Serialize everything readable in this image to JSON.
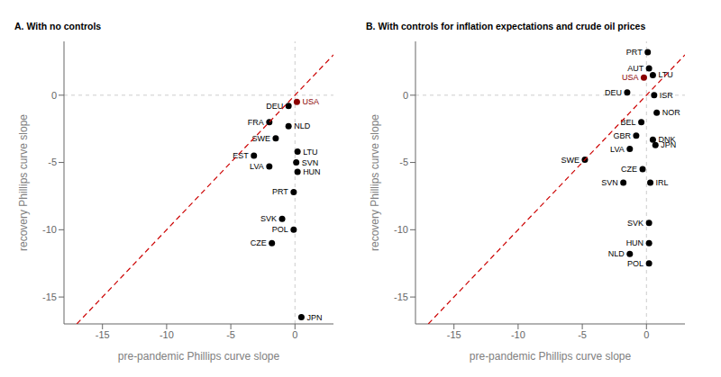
{
  "chart_data": [
    {
      "type": "scatter",
      "title": "A. With no controls",
      "xlabel": "pre-pandemic Phillips curve slope",
      "ylabel": "recovery Phillips curve slope",
      "xlim": [
        -18,
        3
      ],
      "ylim": [
        -17,
        4
      ],
      "xticks": [
        -15,
        -10,
        -5,
        0
      ],
      "yticks": [
        -15,
        -10,
        -5,
        0
      ],
      "series": [
        {
          "type": "scatter",
          "x": [
            0.15,
            -0.5,
            -2.0,
            -0.5,
            -1.5,
            -3.2,
            0.2,
            0.1,
            0.2,
            -2.0,
            -0.1,
            -1.0,
            -0.1,
            -1.8,
            0.5
          ],
          "values": [
            -0.5,
            -0.8,
            -2.0,
            -2.3,
            -3.2,
            -4.5,
            -4.2,
            -5.0,
            -5.7,
            -5.3,
            -7.2,
            -9.2,
            -10.0,
            -11.0,
            -16.5
          ],
          "colors": [
            "#8B0000",
            "#000000",
            "#000000",
            "#000000",
            "#000000",
            "#000000",
            "#000000",
            "#000000",
            "#000000",
            "#000000",
            "#000000",
            "#000000",
            "#000000",
            "#000000",
            "#000000"
          ],
          "annotations": [
            "USA",
            "DEU",
            "FRA",
            "NLD",
            "SWE",
            "EST",
            "LTU",
            "SVN",
            "HUN",
            "LVA",
            "PRT",
            "SVK",
            "POL",
            "CZE",
            "JPN"
          ]
        },
        {
          "type": "line",
          "line_style": "dashed",
          "color": "#cc0000",
          "x": [
            -17,
            3
          ],
          "values": [
            -17,
            3
          ]
        }
      ]
    },
    {
      "type": "scatter",
      "title": "B. With controls for inflation expectations and crude oil prices",
      "xlabel": "pre-pandemic Phillips curve slope",
      "ylabel": "recovery Phillips curve slope",
      "xlim": [
        -18,
        3
      ],
      "ylim": [
        -17,
        4
      ],
      "xticks": [
        -15,
        -10,
        -5,
        0
      ],
      "yticks": [
        -15,
        -10,
        -5,
        0
      ],
      "series": [
        {
          "type": "scatter",
          "x": [
            0.1,
            0.2,
            -0.2,
            0.5,
            -1.5,
            0.6,
            0.8,
            -0.4,
            -0.8,
            0.5,
            0.7,
            -1.3,
            -4.8,
            -0.3,
            -1.8,
            0.3,
            0.2,
            0.2,
            -1.3,
            0.2
          ],
          "values": [
            3.2,
            2.0,
            1.3,
            1.5,
            0.2,
            0.0,
            -1.3,
            -2.0,
            -3.0,
            -3.3,
            -3.7,
            -4.0,
            -4.8,
            -5.5,
            -6.5,
            -6.5,
            -9.5,
            -11.0,
            -11.8,
            -12.5
          ],
          "colors": [
            "#000000",
            "#000000",
            "#8B0000",
            "#000000",
            "#000000",
            "#000000",
            "#000000",
            "#000000",
            "#000000",
            "#000000",
            "#000000",
            "#000000",
            "#000000",
            "#000000",
            "#000000",
            "#000000",
            "#000000",
            "#000000",
            "#000000",
            "#000000"
          ],
          "annotations": [
            "PRT",
            "AUT",
            "USA",
            "LTU",
            "DEU",
            "ISR",
            "NOR",
            "BEL",
            "GBR",
            "DNK",
            "JPN",
            "LVA",
            "SWE",
            "CZE",
            "SVN",
            "IRL",
            "SVK",
            "HUN",
            "NLD",
            "POL"
          ]
        },
        {
          "type": "line",
          "line_style": "dashed",
          "color": "#cc0000",
          "x": [
            -17,
            3
          ],
          "values": [
            -17,
            3
          ]
        }
      ]
    }
  ]
}
